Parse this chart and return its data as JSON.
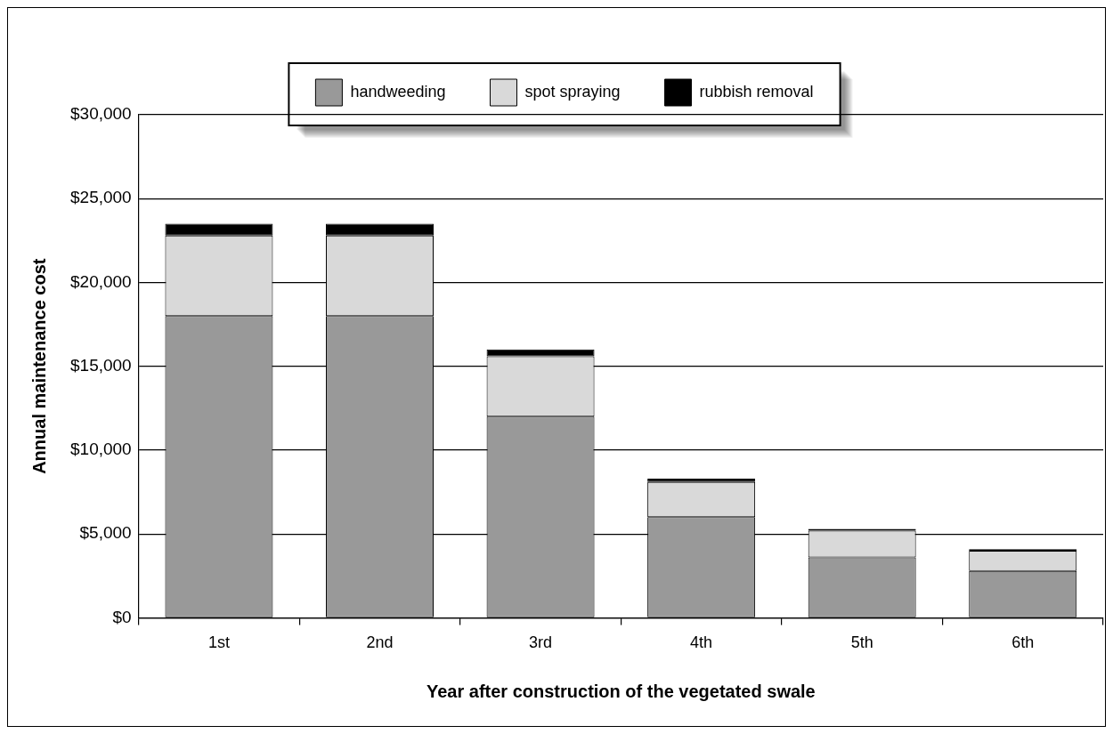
{
  "chart_data": {
    "type": "bar",
    "stacked": true,
    "xlabel": "Year after construction of the vegetated swale",
    "ylabel": "Annual maintenance cost",
    "categories": [
      "1st",
      "2nd",
      "3rd",
      "4th",
      "5th",
      "6th"
    ],
    "series": [
      {
        "name": "handweeding",
        "color": "#999999",
        "values": [
          18000,
          18000,
          12000,
          6000,
          3600,
          2800
        ]
      },
      {
        "name": "spot spraying",
        "color": "#d9d9d9",
        "values": [
          4800,
          4800,
          3600,
          2100,
          1600,
          1200
        ]
      },
      {
        "name": "rubbish removal",
        "color": "#000000",
        "values": [
          700,
          700,
          400,
          200,
          100,
          100
        ]
      }
    ],
    "ylim": [
      0,
      30000
    ],
    "yticks": [
      {
        "value": 0,
        "label": "$0"
      },
      {
        "value": 5000,
        "label": "$5,000"
      },
      {
        "value": 10000,
        "label": "$10,000"
      },
      {
        "value": 15000,
        "label": "$15,000"
      },
      {
        "value": 20000,
        "label": "$20,000"
      },
      {
        "value": 25000,
        "label": "$25,000"
      },
      {
        "value": 30000,
        "label": "$30,000"
      }
    ],
    "grid": "y",
    "legend": "top"
  }
}
